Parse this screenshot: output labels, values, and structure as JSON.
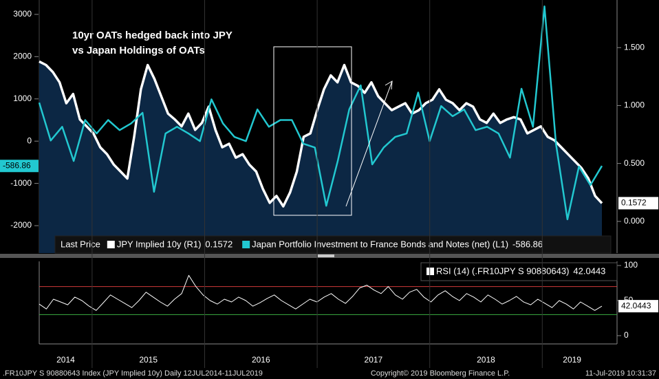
{
  "chart_data": [
    {
      "type": "line",
      "title": [
        "10yr OATs hedged back into JPY",
        "vs Japan Holdings of OATs"
      ],
      "legend_label": "Last Price",
      "ylim": [
        -2650,
        3340
      ],
      "yticks": [
        -2000,
        -1000,
        0,
        1000,
        2000,
        3000
      ],
      "y2lim": [
        -0.274,
        1.911
      ],
      "y2ticks": [
        {
          "value": 0,
          "label": "0.000"
        },
        {
          "value": 0.5,
          "label": "0.500"
        },
        {
          "value": 1,
          "label": "1.000"
        },
        {
          "value": 1.5,
          "label": "1.500"
        }
      ],
      "series": [
        {
          "name": "JPY Implied 10y  (R1)",
          "color": "#ffffff",
          "fill": "#0c2744",
          "axis": "y2",
          "values": [
            1.38,
            1.35,
            1.29,
            1.2,
            1.02,
            1.1,
            0.88,
            0.82,
            0.76,
            0.64,
            0.58,
            0.49,
            0.43,
            0.37,
            0.73,
            1.14,
            1.35,
            1.23,
            1.08,
            0.93,
            0.88,
            0.82,
            0.93,
            0.79,
            0.85,
            0.99,
            0.79,
            0.64,
            0.67,
            0.55,
            0.58,
            0.49,
            0.43,
            0.28,
            0.16,
            0.22,
            0.13,
            0.25,
            0.43,
            0.73,
            0.76,
            0.96,
            1.14,
            1.26,
            1.2,
            1.35,
            1.2,
            1.17,
            1.11,
            1.2,
            1.08,
            1.02,
            0.96,
            0.99,
            1.02,
            0.93,
            0.96,
            1.02,
            1.05,
            1.14,
            1.05,
            1.02,
            0.96,
            1.02,
            0.99,
            0.88,
            0.85,
            0.93,
            0.85,
            0.88,
            0.9,
            0.88,
            0.76,
            0.79,
            0.82,
            0.73,
            0.7,
            0.64,
            0.58,
            0.52,
            0.46,
            0.37,
            0.22,
            0.1572
          ]
        },
        {
          "name": "Japan Portfolio Investment to France Bonds and Notes (net)  (L1)",
          "color": "#22c8d0",
          "axis": "y",
          "values": [
            910,
            15,
            340,
            -470,
            500,
            180,
            500,
            260,
            420,
            670,
            -1200,
            180,
            340,
            180,
            0,
            990,
            420,
            100,
            0,
            750,
            340,
            500,
            500,
            -60,
            -150,
            -1530,
            -470,
            750,
            1320,
            -550,
            -150,
            100,
            180,
            1150,
            0,
            830,
            590,
            750,
            260,
            340,
            180,
            -390,
            1240,
            340,
            3190,
            -60,
            -1850,
            -600,
            -1040,
            -586.86
          ]
        }
      ]
    },
    {
      "type": "line",
      "xlim": [
        2014.53,
        2019.53
      ],
      "xticks": [
        2014,
        2015,
        2016,
        2017,
        2018,
        2019
      ],
      "ylim": [
        -11.8,
        105.9
      ],
      "yticks": [
        0,
        50,
        100
      ],
      "ref_lines": [
        {
          "value": 70,
          "color": "#d23a3a"
        },
        {
          "value": 30,
          "color": "#3cb043"
        }
      ],
      "series": [
        {
          "name": "RSI (14) (.FR10JPY S 90880643)",
          "color": "#ffffff",
          "values": [
            45,
            38,
            52,
            48,
            44,
            55,
            50,
            42,
            36,
            47,
            58,
            52,
            46,
            40,
            50,
            62,
            55,
            48,
            42,
            52,
            60,
            86,
            70,
            58,
            50,
            45,
            52,
            48,
            55,
            50,
            42,
            47,
            53,
            58,
            50,
            44,
            38,
            45,
            52,
            48,
            55,
            60,
            52,
            46,
            56,
            68,
            72,
            65,
            60,
            70,
            58,
            52,
            62,
            66,
            55,
            48,
            58,
            64,
            56,
            50,
            60,
            55,
            48,
            58,
            52,
            45,
            50,
            56,
            48,
            44,
            52,
            46,
            40,
            50,
            45,
            38,
            48,
            42,
            36,
            42.0443
          ]
        }
      ]
    }
  ],
  "footer": {
    "left": ".FR10JPY S 90880643 Index (JPY Implied 10y)  Daily 12JUL2014-11JUL2019",
    "center": "Copyright© 2019 Bloomberg Finance L.P.",
    "right": "11-Jul-2019 10:31:37"
  }
}
